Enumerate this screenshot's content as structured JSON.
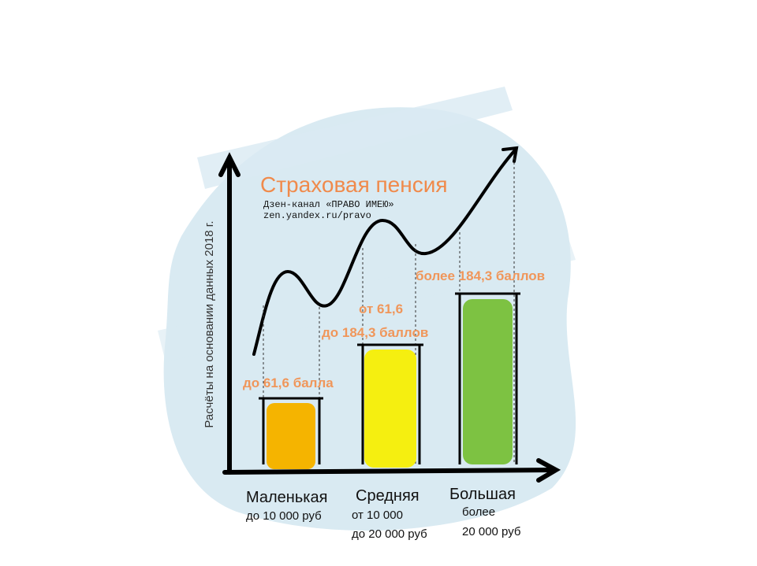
{
  "title": "Страховая пенсия",
  "watermark": [
    "Дзен-канал «ПРАВО ИМЕЮ»",
    "zen.yandex.ru/pravo"
  ],
  "y_axis_label": "Расчёты на основании данных  2018 г.",
  "columns": [
    {
      "points": [
        "до 61,6 балла"
      ],
      "category": "Маленькая",
      "income": [
        "до 10 000 руб"
      ]
    },
    {
      "points": [
        "от 61,6",
        "до 184,3 баллов"
      ],
      "category": "Средняя",
      "income": [
        "от 10 000",
        "до 20 000 руб"
      ]
    },
    {
      "points": [
        "более 184,3 баллов"
      ],
      "category": "Большая",
      "income": [
        "более",
        "20 000 руб"
      ]
    }
  ]
}
